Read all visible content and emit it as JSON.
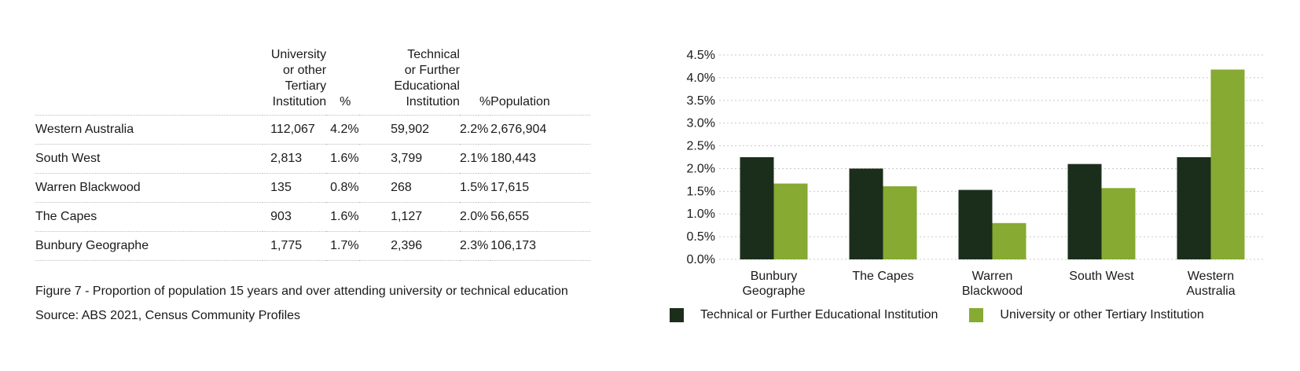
{
  "table": {
    "headers": {
      "name": "",
      "university_lines": [
        "University",
        "or other",
        "Tertiary",
        "Institution"
      ],
      "university_pct": "%",
      "technical_lines": [
        "Technical",
        "or Further",
        "Educational",
        "Institution"
      ],
      "technical_pct": "%",
      "population": "Population"
    },
    "rows": [
      {
        "name": "Western Australia",
        "university": "112,067",
        "university_pct": "4.2%",
        "technical": "59,902",
        "technical_pct": "2.2%",
        "population": "2,676,904"
      },
      {
        "name": "South West",
        "university": "2,813",
        "university_pct": "1.6%",
        "technical": "3,799",
        "technical_pct": "2.1%",
        "population": "180,443"
      },
      {
        "name": "Warren Blackwood",
        "university": "135",
        "university_pct": "0.8%",
        "technical": "268",
        "technical_pct": "1.5%",
        "population": "17,615"
      },
      {
        "name": "The Capes",
        "university": "903",
        "university_pct": "1.6%",
        "technical": "1,127",
        "technical_pct": "2.0%",
        "population": "56,655"
      },
      {
        "name": "Bunbury Geographe",
        "university": "1,775",
        "university_pct": "1.7%",
        "technical": "2,396",
        "technical_pct": "2.3%",
        "population": "106,173"
      }
    ]
  },
  "caption": "Figure 7 - Proportion of population 15 years and over attending university or technical education",
  "source": "Source: ABS 2021, Census Community Profiles",
  "colors": {
    "technical": "#1b2e1b",
    "university": "#86aa32",
    "grid": "#c8c8c8",
    "rule": "#bdbdbd"
  },
  "chart_data": {
    "type": "bar",
    "categories": [
      [
        "Bunbury",
        "Geographe"
      ],
      [
        "The Capes"
      ],
      [
        "Warren",
        "Blackwood"
      ],
      [
        "South West"
      ],
      [
        "Western",
        "Australia"
      ]
    ],
    "series": [
      {
        "name": "Technical or Further Educational Institution",
        "values": [
          2.25,
          2.0,
          1.53,
          2.1,
          2.25
        ]
      },
      {
        "name": "University or other Tertiary Institution",
        "values": [
          1.67,
          1.61,
          0.8,
          1.57,
          4.18
        ]
      }
    ],
    "yticks": [
      "0.0%",
      "0.5%",
      "1.0%",
      "1.5%",
      "2.0%",
      "2.5%",
      "3.0%",
      "3.5%",
      "4.0%",
      "4.5%"
    ],
    "ylim": [
      0,
      4.5
    ],
    "grid": true,
    "legend_position": "bottom"
  }
}
